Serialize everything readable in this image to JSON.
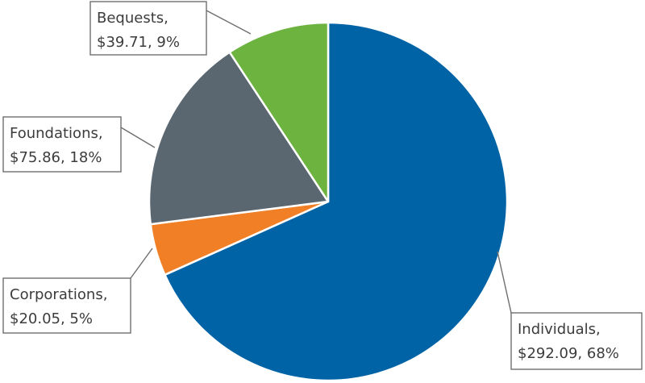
{
  "chart_data": {
    "type": "pie",
    "start_angle_deg": 0,
    "direction": "clockwise",
    "slices": [
      {
        "name": "Individuals",
        "value_label": "$292.09",
        "percent_label": "68%",
        "value": 292.09,
        "color": "#0063a6"
      },
      {
        "name": "Corporations",
        "value_label": "$20.05",
        "percent_label": "5%",
        "value": 20.05,
        "color": "#f07f26"
      },
      {
        "name": "Foundations",
        "value_label": "$75.86",
        "percent_label": "18%",
        "value": 75.86,
        "color": "#5a6670"
      },
      {
        "name": "Bequests",
        "value_label": "$39.71",
        "percent_label": "9%",
        "value": 39.71,
        "color": "#6db33f"
      }
    ]
  }
}
